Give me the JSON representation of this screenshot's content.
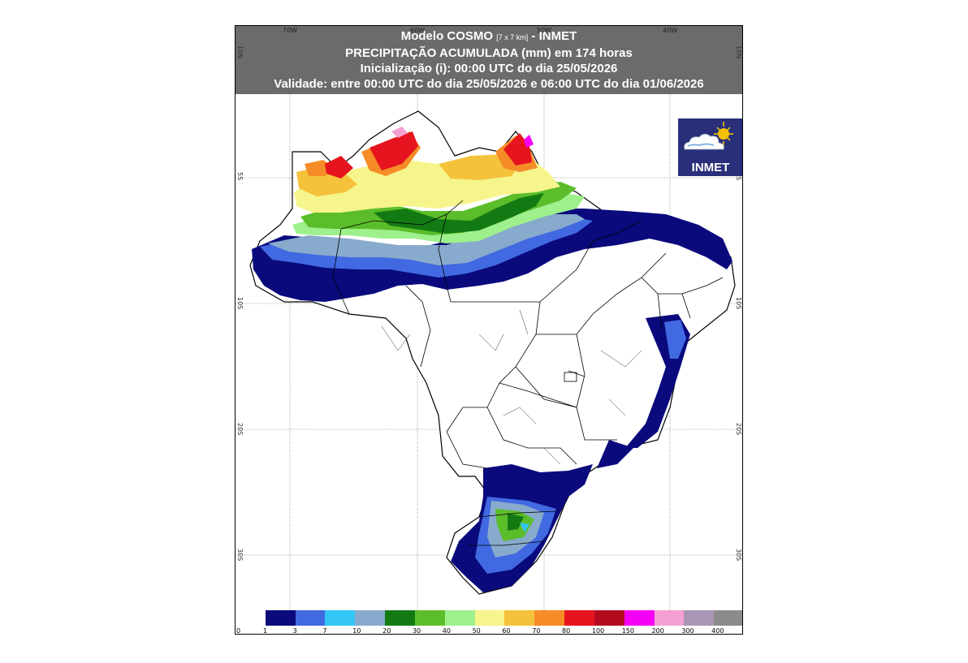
{
  "title": {
    "line1_prefix": "Modelo COSMO ",
    "line1_small": "[7 x 7 km]",
    "line1_suffix": " - INMET",
    "line2": "PRECIPITAÇÃO ACUMULADA (mm) em 174 horas",
    "line3": "Inicialização (i): 00:00 UTC do dia 25/05/2026",
    "line4": "Validade: entre 00:00 UTC do dia 25/05/2026 e 06:00 UTC do dia 01/06/2026"
  },
  "logo": {
    "text": "INMET",
    "icon": "sun-cloud-icon"
  },
  "axes": {
    "longitude_labels": [
      "70W",
      "60W",
      "50W",
      "40W"
    ],
    "latitude_labels_left": [
      "10N",
      "5S",
      "10S",
      "20S",
      "30S"
    ],
    "latitude_labels_right": [
      "10N",
      "5S",
      "10S",
      "20S",
      "30S"
    ]
  },
  "legend": {
    "labels": [
      "0",
      "1",
      "3",
      "7",
      "10",
      "20",
      "30",
      "40",
      "50",
      "60",
      "70",
      "80",
      "100",
      "150",
      "200",
      "300",
      "400"
    ],
    "colors": [
      "#ffffff",
      "#0a0a7d",
      "#4169e1",
      "#33c6f5",
      "#88aacc",
      "#137a13",
      "#5bbd2a",
      "#9ef08c",
      "#f5f58c",
      "#f5c23c",
      "#f58c28",
      "#e6141e",
      "#b40a1e",
      "#f500f5",
      "#f5a0d2",
      "#aa96b4",
      "#8c8c8c"
    ]
  }
}
